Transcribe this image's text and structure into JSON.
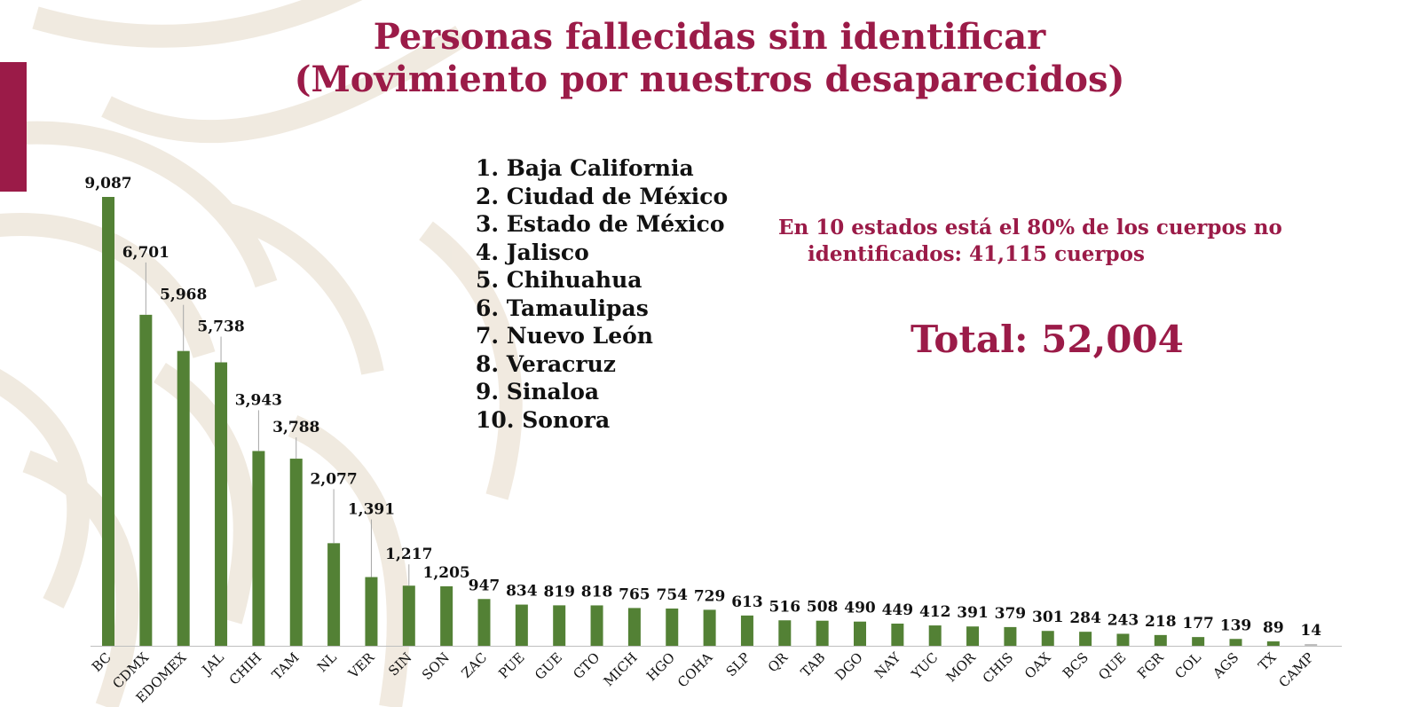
{
  "colors": {
    "accent": "#9B1B48",
    "bar": "#538135",
    "bar_last": "#BFBFBF",
    "text": "#111111",
    "axis": "#BFBFBF",
    "pattern": "#EFE8DD"
  },
  "title_line1": "Personas fallecidas sin identificar",
  "title_line2": "(Movimiento por nuestros desaparecidos)",
  "ranking": [
    "1. Baja California",
    "2. Ciudad de México",
    "3. Estado de México",
    "4. Jalisco",
    "5. Chihuahua",
    "6. Tamaulipas",
    "7. Nuevo León",
    "8. Veracruz",
    "9. Sinaloa",
    "10. Sonora"
  ],
  "note_line1": "En 10 estados está el 80% de los cuerpos no",
  "note_line2": "identificados: 41,115 cuerpos",
  "total": "Total: 52,004",
  "chart_data": {
    "type": "bar",
    "categories": [
      "BC",
      "CDMX",
      "EDOMEX",
      "JAL",
      "CHIH",
      "TAM",
      "NL",
      "VER",
      "SIN",
      "SON",
      "ZAC",
      "PUE",
      "GUE",
      "GTO",
      "MICH",
      "HGO",
      "COHA",
      "SLP",
      "QR",
      "TAB",
      "DGO",
      "NAY",
      "YUC",
      "MOR",
      "CHIS",
      "OAX",
      "BCS",
      "QUE",
      "FGR",
      "COL",
      "AGS",
      "TX",
      "CAMP"
    ],
    "values": [
      9087,
      6701,
      5968,
      5738,
      3943,
      3788,
      2077,
      1391,
      1217,
      1205,
      947,
      834,
      819,
      818,
      765,
      754,
      729,
      613,
      516,
      508,
      490,
      449,
      412,
      391,
      379,
      301,
      284,
      243,
      218,
      177,
      139,
      89,
      14
    ],
    "labels": [
      "9,087",
      "6,701",
      "5,968",
      "5,738",
      "3,943",
      "3,788",
      "2,077",
      "1,391",
      "1,217",
      "1,205",
      "947",
      "834",
      "819",
      "818",
      "765",
      "754",
      "729",
      "613",
      "516",
      "508",
      "490",
      "449",
      "412",
      "391",
      "379",
      "301",
      "284",
      "243",
      "218",
      "177",
      "139",
      "89",
      "14"
    ],
    "ylim": [
      0,
      9087
    ],
    "grid": false,
    "title": "",
    "xlabel": "",
    "ylabel": ""
  }
}
